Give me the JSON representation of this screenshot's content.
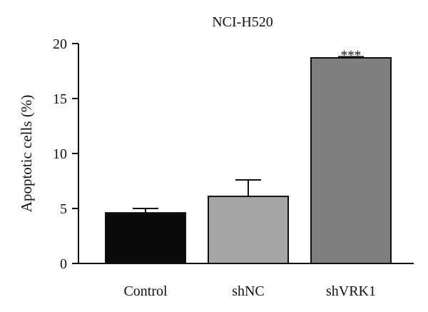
{
  "chart_data": {
    "type": "bar",
    "title": "NCI-H520",
    "xlabel": "",
    "ylabel": "Apoptotic cells (%)",
    "ylim": [
      0,
      20
    ],
    "yticks": [
      0,
      5,
      10,
      15,
      20
    ],
    "ytick_labels": [
      "0",
      "5",
      "10",
      "15",
      "20"
    ],
    "categories": [
      "Control",
      "shNC",
      "shVRK1"
    ],
    "values": [
      4.6,
      6.1,
      18.7
    ],
    "errors": [
      0.4,
      1.5,
      0.1
    ],
    "bar_colors": [
      "#0a0a0a",
      "#a6a6a6",
      "#7f7f7f"
    ],
    "annotations": [
      {
        "category": "shVRK1",
        "text": "***"
      }
    ],
    "grid": false,
    "legend": "none"
  }
}
